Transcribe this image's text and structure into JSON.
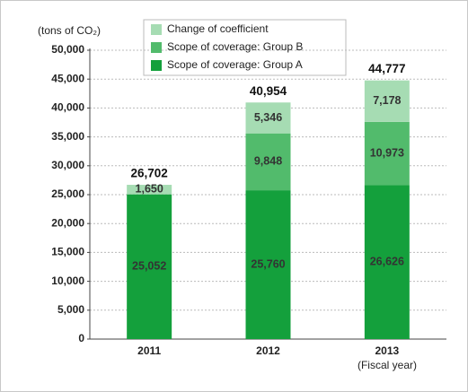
{
  "chart_data": {
    "type": "stacked_bar",
    "y_axis_label": "(tons of CO₂)",
    "x_axis_label": "(Fiscal year)",
    "categories": [
      "2011",
      "2012",
      "2013"
    ],
    "series": [
      {
        "name": "Scope of coverage: Group A",
        "color": "#14a03c",
        "values": [
          25052,
          25760,
          26626
        ],
        "value_labels": [
          "25,052",
          "25,760",
          "26,626"
        ]
      },
      {
        "name": "Scope of coverage: Group B",
        "color": "#52bb6c",
        "values": [
          null,
          9848,
          10973
        ],
        "value_labels": [
          null,
          "9,848",
          "10,973"
        ]
      },
      {
        "name": "Change of coefficient",
        "color": "#a6dcb3",
        "values": [
          1650,
          5346,
          7178
        ],
        "value_labels": [
          "1,650",
          "5,346",
          "7,178"
        ]
      }
    ],
    "totals": [
      26702,
      40954,
      44777
    ],
    "total_labels": [
      "26,702",
      "40,954",
      "44,777"
    ],
    "ylim": [
      0,
      50000
    ],
    "yticks": [
      0,
      {
        "value": 5000,
        "label": "5,000"
      },
      {
        "value": 10000,
        "label": "10,000"
      },
      {
        "value": 15000,
        "label": "15,000"
      },
      {
        "value": 20000,
        "label": "20,000"
      },
      {
        "value": 25000,
        "label": "25,000"
      },
      {
        "value": 30000,
        "label": "30,000"
      },
      {
        "value": 35000,
        "label": "35,000"
      },
      {
        "value": 40000,
        "label": "40,000"
      },
      {
        "value": 45000,
        "label": "45,000"
      },
      {
        "value": 50000,
        "label": "50,000"
      }
    ],
    "grid": true
  }
}
